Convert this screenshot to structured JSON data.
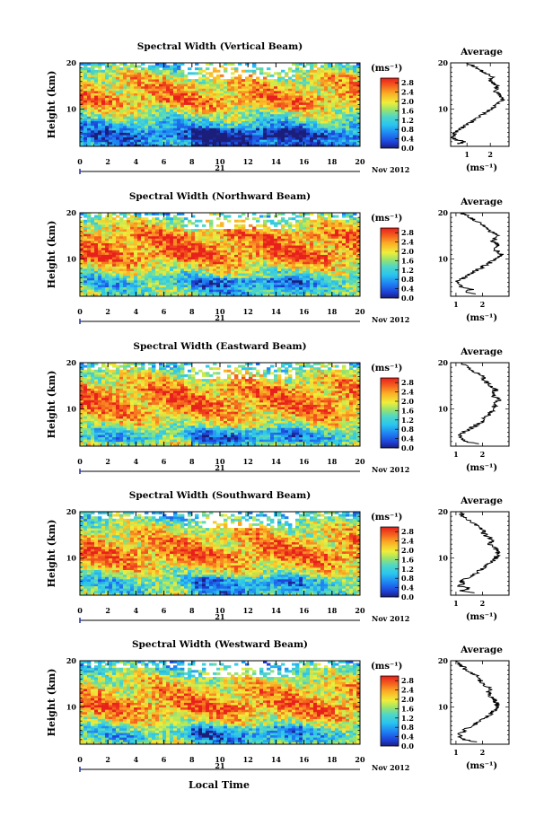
{
  "figure": {
    "bottom_xlabel": "Local Time",
    "day_label": "21",
    "month_label": "Nov 2012",
    "ylabel": "Height (km)",
    "units": "(ms⁻¹)",
    "avg_title": "Average",
    "avg_xlabel": "(ms⁻¹)"
  },
  "chart_data": [
    {
      "type": "heatmap",
      "title": "Spectral Width (Vertical Beam)",
      "x_range": [
        0,
        20
      ],
      "x_ticks": [
        0,
        2,
        4,
        6,
        8,
        10,
        12,
        14,
        16,
        18,
        20
      ],
      "y_range": [
        2,
        20
      ],
      "y_ticks": [
        10,
        20
      ],
      "colorbar": {
        "range": [
          0,
          3.0
        ],
        "labels": [
          "2.8",
          "2.4",
          "2.0",
          "1.6",
          "1.2",
          "0.8",
          "0.4",
          "0.0"
        ]
      },
      "profile": {
        "title": "Average",
        "x_range": [
          0.3,
          2.8
        ],
        "x_ticks": [
          1,
          2
        ],
        "x_tick_labels": [
          "1",
          "2"
        ],
        "heights": [
          2.5,
          3,
          3.5,
          4,
          5,
          6,
          7,
          8,
          9,
          10,
          11,
          12,
          13,
          14,
          15,
          16,
          17,
          18,
          19,
          20
        ],
        "values": [
          0.6,
          0.9,
          0.5,
          0.4,
          0.5,
          0.8,
          1.1,
          1.4,
          1.7,
          2.0,
          2.3,
          2.5,
          2.4,
          2.2,
          2.3,
          2.0,
          2.1,
          1.7,
          1.4,
          1.0
        ]
      }
    },
    {
      "type": "heatmap",
      "title": "Spectral Width (Northward Beam)",
      "x_range": [
        0,
        20
      ],
      "x_ticks": [
        0,
        2,
        4,
        6,
        8,
        10,
        12,
        14,
        16,
        18,
        20
      ],
      "y_range": [
        2,
        20
      ],
      "y_ticks": [
        10,
        20
      ],
      "colorbar": {
        "range": [
          0,
          3.0
        ],
        "labels": [
          "2.8",
          "2.4",
          "2.0",
          "1.6",
          "1.2",
          "0.8",
          "0.4",
          "0.0"
        ]
      },
      "profile": {
        "title": "Average",
        "x_range": [
          0.8,
          3.0
        ],
        "x_ticks": [
          1,
          2
        ],
        "x_tick_labels": [
          "1",
          "2"
        ],
        "heights": [
          2.5,
          3,
          3.5,
          4,
          4.5,
          5,
          6,
          7,
          8,
          9,
          10,
          11,
          12,
          13,
          14,
          15,
          16,
          17,
          18,
          19,
          20
        ],
        "values": [
          1.7,
          1.3,
          1.6,
          1.1,
          1.2,
          1.0,
          1.3,
          1.6,
          1.9,
          2.2,
          2.5,
          2.7,
          2.5,
          2.6,
          2.4,
          2.6,
          2.3,
          2.1,
          1.8,
          1.5,
          1.2
        ]
      }
    },
    {
      "type": "heatmap",
      "title": "Spectral Width (Eastward Beam)",
      "x_range": [
        0,
        20
      ],
      "x_ticks": [
        0,
        2,
        4,
        6,
        8,
        10,
        12,
        14,
        16,
        18,
        20
      ],
      "y_range": [
        2,
        20
      ],
      "y_ticks": [
        10,
        20
      ],
      "colorbar": {
        "range": [
          0,
          3.0
        ],
        "labels": [
          "2.8",
          "2.4",
          "2.0",
          "1.6",
          "1.2",
          "0.8",
          "0.4",
          "0.0"
        ]
      },
      "profile": {
        "title": "Average",
        "x_range": [
          0.8,
          3.0
        ],
        "x_ticks": [
          1,
          2
        ],
        "x_tick_labels": [
          "1",
          "2"
        ],
        "heights": [
          2.5,
          3,
          3.5,
          4,
          5,
          6,
          7,
          8,
          9,
          10,
          11,
          12,
          13,
          14,
          15,
          16,
          17,
          18,
          19,
          20
        ],
        "values": [
          1.8,
          1.4,
          1.2,
          1.1,
          1.3,
          1.6,
          1.9,
          2.1,
          2.3,
          2.4,
          2.5,
          2.6,
          2.4,
          2.5,
          2.3,
          2.1,
          2.0,
          1.7,
          1.4,
          1.2
        ]
      }
    },
    {
      "type": "heatmap",
      "title": "Spectral Width (Southward Beam)",
      "x_range": [
        0,
        20
      ],
      "x_ticks": [
        0,
        2,
        4,
        6,
        8,
        10,
        12,
        14,
        16,
        18,
        20
      ],
      "y_range": [
        2,
        20
      ],
      "y_ticks": [
        10,
        20
      ],
      "colorbar": {
        "range": [
          0,
          3.0
        ],
        "labels": [
          "2.8",
          "2.4",
          "2.0",
          "1.6",
          "1.2",
          "0.8",
          "0.4",
          "0.0"
        ]
      },
      "profile": {
        "title": "Average",
        "x_range": [
          0.8,
          3.0
        ],
        "x_ticks": [
          1,
          2
        ],
        "x_tick_labels": [
          "1",
          "2"
        ],
        "heights": [
          2.5,
          3,
          3.5,
          4,
          4.5,
          5,
          6,
          7,
          8,
          9,
          10,
          11,
          12,
          13,
          14,
          15,
          16,
          17,
          18,
          19,
          20
        ],
        "values": [
          1.6,
          1.2,
          1.5,
          1.1,
          1.3,
          1.2,
          1.5,
          1.8,
          2.1,
          2.3,
          2.5,
          2.6,
          2.5,
          2.3,
          2.4,
          2.1,
          2.0,
          1.8,
          1.5,
          1.3,
          1.1
        ]
      }
    },
    {
      "type": "heatmap",
      "title": "Spectral Width (Westward Beam)",
      "x_range": [
        0,
        20
      ],
      "x_ticks": [
        0,
        2,
        4,
        6,
        8,
        10,
        12,
        14,
        16,
        18,
        20
      ],
      "y_range": [
        2,
        20
      ],
      "y_ticks": [
        10,
        20
      ],
      "colorbar": {
        "range": [
          0,
          3.0
        ],
        "labels": [
          "2.8",
          "2.4",
          "2.0",
          "1.6",
          "1.2",
          "0.8",
          "0.4",
          "0.0"
        ]
      },
      "profile": {
        "title": "Average",
        "x_range": [
          0.8,
          3.0
        ],
        "x_ticks": [
          1,
          2
        ],
        "x_tick_labels": [
          "1",
          "2"
        ],
        "heights": [
          2.5,
          3,
          3.5,
          4,
          5,
          6,
          7,
          8,
          9,
          10,
          11,
          12,
          13,
          14,
          15,
          16,
          17,
          18,
          19,
          20
        ],
        "values": [
          1.7,
          1.3,
          1.2,
          1.1,
          1.3,
          1.6,
          1.9,
          2.2,
          2.4,
          2.6,
          2.5,
          2.4,
          2.2,
          2.3,
          2.0,
          1.9,
          1.7,
          1.4,
          1.2,
          1.0
        ]
      }
    }
  ]
}
